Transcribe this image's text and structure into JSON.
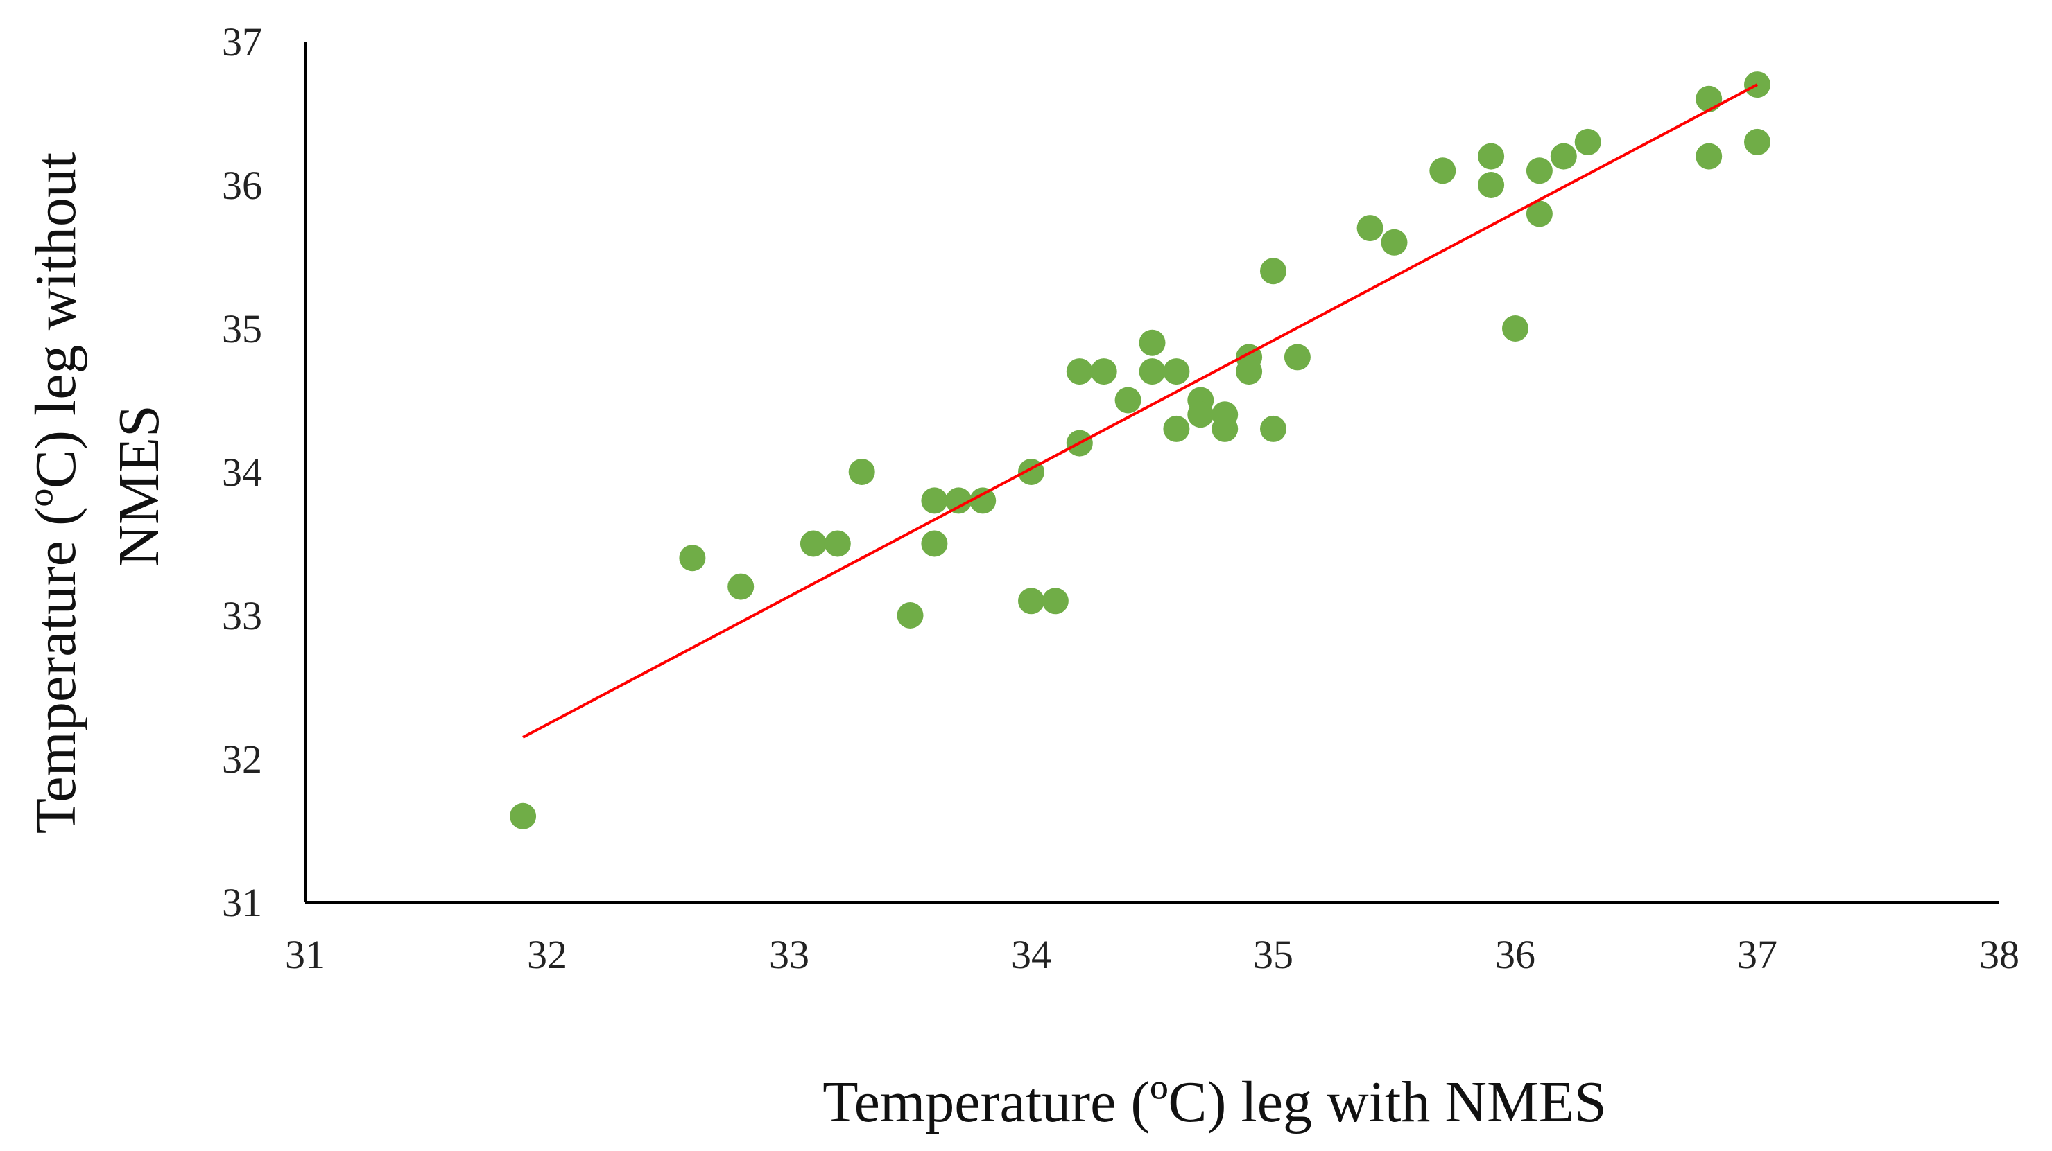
{
  "chart_data": {
    "type": "scatter",
    "title": "",
    "xlabel": "Temperature (ºC) leg with NMES",
    "ylabel_lines": [
      "Temperature (ºC) leg without",
      "NMES"
    ],
    "xlim": [
      31,
      38
    ],
    "ylim": [
      31,
      37
    ],
    "xticks": [
      "31",
      "32",
      "33",
      "34",
      "35",
      "36",
      "37",
      "38"
    ],
    "yticks": [
      "31",
      "32",
      "33",
      "34",
      "35",
      "36",
      "37"
    ],
    "grid": false,
    "legend": "none",
    "colors": {
      "points": "#70ad47",
      "trendline": "#ff0000",
      "axis": "#000000"
    },
    "series": [
      {
        "name": "Temperature",
        "x": [
          31.9,
          32.6,
          32.8,
          33.1,
          33.2,
          33.3,
          33.5,
          33.6,
          33.6,
          33.7,
          33.8,
          34.0,
          34.0,
          34.1,
          34.2,
          34.2,
          34.3,
          34.4,
          34.5,
          34.5,
          34.6,
          34.6,
          34.7,
          34.7,
          34.8,
          34.8,
          34.9,
          34.9,
          35.0,
          35.0,
          35.1,
          35.4,
          35.5,
          35.7,
          35.9,
          35.9,
          36.0,
          36.1,
          36.1,
          36.2,
          36.3,
          36.8,
          36.8,
          37.0,
          37.0
        ],
        "y": [
          31.6,
          33.4,
          33.2,
          33.5,
          33.5,
          34.0,
          33.0,
          33.8,
          33.5,
          33.8,
          33.8,
          34.0,
          33.1,
          33.1,
          34.7,
          34.2,
          34.7,
          34.5,
          34.9,
          34.7,
          34.7,
          34.3,
          34.5,
          34.4,
          34.4,
          34.3,
          34.8,
          34.7,
          35.4,
          34.3,
          34.8,
          35.7,
          35.6,
          36.1,
          36.2,
          36.0,
          35.0,
          36.1,
          35.8,
          36.2,
          36.3,
          36.6,
          36.2,
          36.7,
          36.3
        ]
      }
    ],
    "trendline": {
      "type": "linear",
      "x": [
        31.9,
        37.0
      ],
      "y": [
        32.15,
        36.7
      ]
    }
  }
}
